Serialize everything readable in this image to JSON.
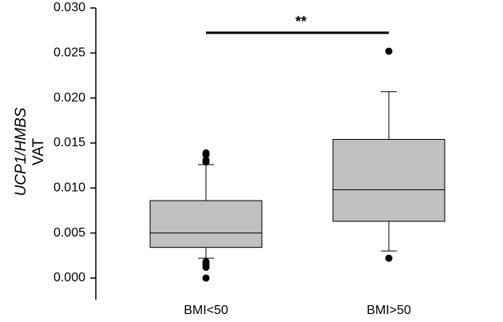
{
  "chart_data": {
    "type": "box",
    "y_label": "UCP1/HMBS",
    "y_label_2": "VAT",
    "annotation": "**",
    "categories": [
      "BMI<50",
      "BMI>50"
    ],
    "color": "#c0c0c0",
    "boxes": [
      {
        "whisker_low": 0.0022,
        "q1": 0.0034,
        "median": 0.005,
        "q3": 0.0086,
        "whisker_high": 0.0126,
        "outliers": [
          0.0139,
          0.0137,
          0.0131,
          0.0129,
          0.0018,
          0.0015,
          0.0012,
          0.0
        ]
      },
      {
        "whisker_low": 0.003,
        "q1": 0.0063,
        "median": 0.0098,
        "q3": 0.0154,
        "whisker_high": 0.0207,
        "outliers": [
          0.0252,
          0.0022
        ]
      }
    ],
    "ylim": [
      -0.0024,
      0.03
    ],
    "yticks": [
      {
        "value": 0,
        "label": "0.000"
      },
      {
        "value": 0.005,
        "label": "0.005"
      },
      {
        "value": 0.01,
        "label": "0.010"
      },
      {
        "value": 0.015,
        "label": "0.015"
      },
      {
        "value": 0.02,
        "label": "0.020"
      },
      {
        "value": 0.025,
        "label": "0.025"
      },
      {
        "value": 0.03,
        "label": "0.030"
      }
    ]
  }
}
